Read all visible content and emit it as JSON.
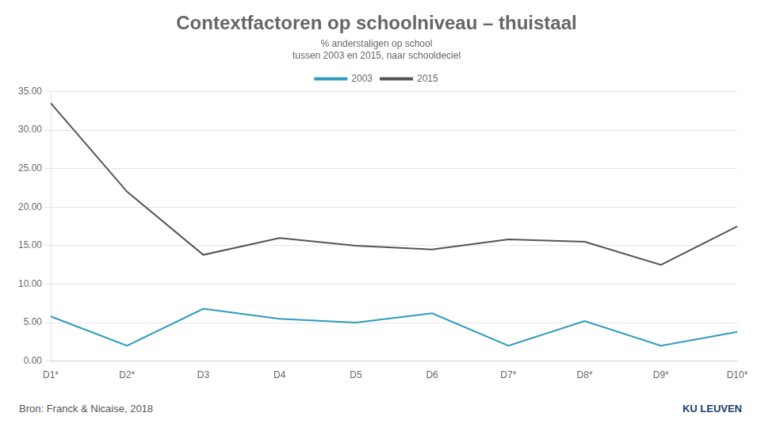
{
  "chart_data": {
    "type": "line",
    "title": "Contextfactoren op schoolniveau – thuistaal",
    "subtitle": [
      "% anderstaligen op school",
      "tussen 2003 en 2015, naar schooldeciel"
    ],
    "annotations": [
      "Bron: Franck & Nicaise, 2018",
      "KU LEUVEN"
    ],
    "categories": [
      "D1*",
      "D2*",
      "D3",
      "D4",
      "D5",
      "D6",
      "D7*",
      "D8*",
      "D9*",
      "D10*"
    ],
    "series": [
      {
        "name": "2003",
        "color": "#2E9BBD",
        "values": [
          5.8,
          2.0,
          6.8,
          5.5,
          5.0,
          6.2,
          2.0,
          5.2,
          2.0,
          3.8
        ]
      },
      {
        "name": "2015",
        "color": "#555555",
        "values": [
          33.5,
          22.0,
          13.8,
          16.0,
          15.0,
          14.5,
          15.8,
          15.5,
          12.5,
          17.5
        ]
      }
    ],
    "ylim": [
      0,
      35
    ],
    "yticks": [
      {
        "value": 0,
        "label": "0.00"
      },
      {
        "value": 5,
        "label": "5.00"
      },
      {
        "value": 10,
        "label": "10.00"
      },
      {
        "value": 15,
        "label": "15.00"
      },
      {
        "value": 20,
        "label": "20.00"
      },
      {
        "value": 25,
        "label": "25.00"
      },
      {
        "value": 30,
        "label": "30.00"
      },
      {
        "value": 35,
        "label": "35.00"
      }
    ],
    "grid": true,
    "legend": "top"
  }
}
